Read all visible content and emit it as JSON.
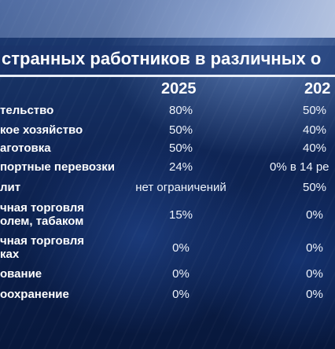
{
  "title": "странных работников в различных о",
  "columns": [
    "2025",
    "202"
  ],
  "rows": [
    {
      "category": [
        "тельство"
      ],
      "v2025": "80%",
      "v2026": "50%"
    },
    {
      "category": [
        "кое хозяйство"
      ],
      "v2025": "50%",
      "v2026": "40%"
    },
    {
      "category": [
        "аготовка"
      ],
      "v2025": "50%",
      "v2026": "40%"
    },
    {
      "category": [
        "портные перевозки"
      ],
      "v2025": "24%",
      "v2026": "0% в 14 ре"
    },
    {
      "category": [
        "лит"
      ],
      "v2025": "нет ограничений",
      "v2026": "50%"
    },
    {
      "category": [
        "чная торговля",
        "олем,  табаком"
      ],
      "v2025": "15%",
      "v2026": "0%"
    },
    {
      "category": [
        "чная торговля",
        "ках"
      ],
      "v2025": "0%",
      "v2026": "0%"
    },
    {
      "category": [
        "ование"
      ],
      "v2025": "0%",
      "v2026": "0%"
    },
    {
      "category": [
        "оохранение"
      ],
      "v2025": "0%",
      "v2026": "0%"
    }
  ]
}
